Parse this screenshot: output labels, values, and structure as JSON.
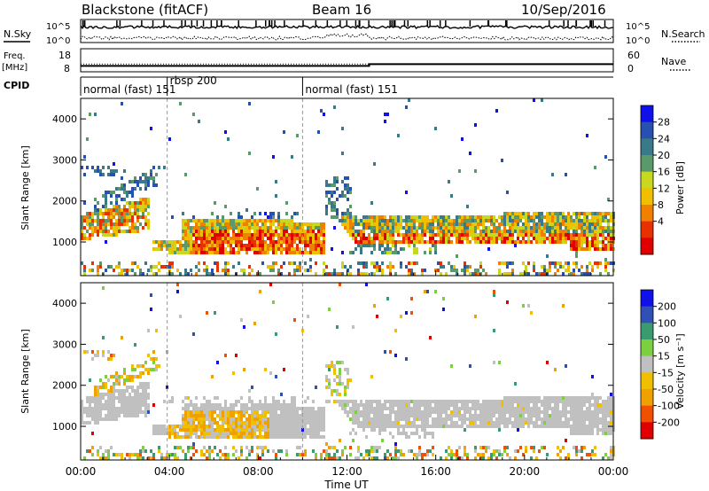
{
  "header": {
    "station": "Blackstone (fitACF)",
    "beam": "Beam 16",
    "date": "10/Sep/2016"
  },
  "nsky_panel": {
    "left_label": "N.Sky",
    "right_label": "N.Search",
    "left_ticks": [
      "10^5",
      "10^0"
    ],
    "right_ticks": [
      "10^5",
      "10^0"
    ]
  },
  "freq_panel": {
    "left_label_1": "Freq.",
    "left_label_2": "[MHz]",
    "right_label": "Nave",
    "left_ticks": [
      "18",
      "8"
    ],
    "right_ticks": [
      "60",
      "0"
    ],
    "freq_mhz": 10.3,
    "nave": 22
  },
  "cpid_panel": {
    "label": "CPID",
    "modes": [
      {
        "start": 0.0,
        "text": "normal (fast) 151"
      },
      {
        "start": 3.9,
        "text": "rbsp 200"
      },
      {
        "start": 10.0,
        "text": "normal (fast) 151"
      }
    ]
  },
  "colors": {
    "power": [
      "#1010e8",
      "#2850b0",
      "#3a7a88",
      "#5a9a6a",
      "#c8d820",
      "#f0c000",
      "#f08000",
      "#e83000",
      "#e00000"
    ],
    "velocity": [
      "#1010e8",
      "#3050b8",
      "#3a9a70",
      "#7ad040",
      "#c0c0c0",
      "#f0c000",
      "#f0a000",
      "#f05000",
      "#e00000"
    ]
  },
  "chart_data": [
    {
      "type": "heatmap",
      "name": "power",
      "ylabel": "Slant Range [km]",
      "xlabel": "",
      "xlim": [
        0,
        24
      ],
      "ylim": [
        180,
        4500
      ],
      "yticks": [
        1000,
        2000,
        3000,
        4000
      ],
      "colorbar_label": "Power [dB]",
      "colorbar_ticks": [
        "28",
        "24",
        "20",
        "16",
        "12",
        "8",
        "4"
      ]
    },
    {
      "type": "heatmap",
      "name": "velocity",
      "ylabel": "Slant Range [km]",
      "xlabel": "Time UT",
      "xlim": [
        0,
        24
      ],
      "ylim": [
        180,
        4500
      ],
      "yticks": [
        1000,
        2000,
        3000,
        4000
      ],
      "xticks": [
        "00:00",
        "04:00",
        "08:00",
        "12:00",
        "16:00",
        "20:00",
        "00:00"
      ],
      "colorbar_label": "Velocity [m s⁻¹]",
      "colorbar_ticks": [
        "200",
        "100",
        "50",
        "15",
        "-15",
        "-50",
        "-100",
        "-200"
      ]
    }
  ]
}
